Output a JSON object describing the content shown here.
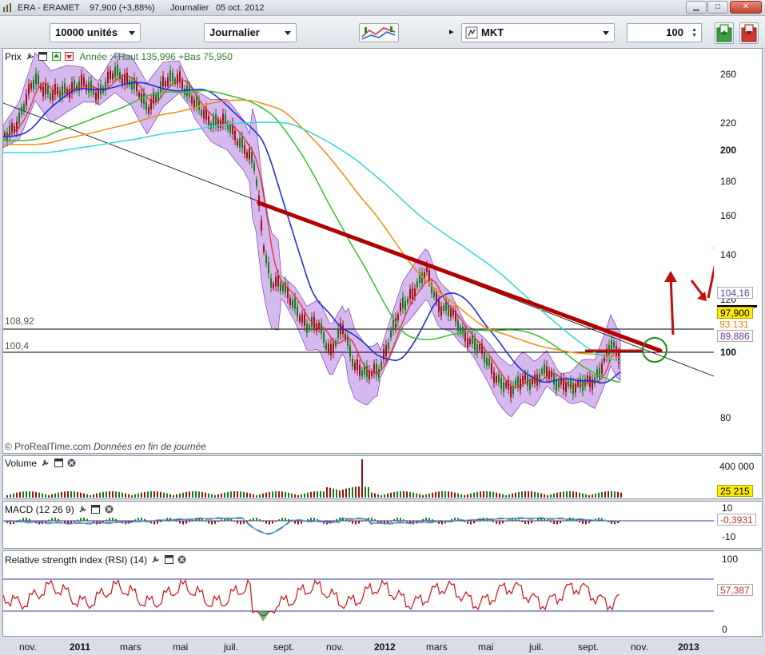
{
  "window": {
    "symbol": "ERA - ERAMET",
    "price": "97,900 (+3,88%)",
    "period": "Journalier",
    "date": "05 oct. 2012"
  },
  "toolbar": {
    "units": "10000 unités",
    "timeframe": "Journalier",
    "market": "MKT",
    "count": "100"
  },
  "price_panel": {
    "label": "Prix",
    "annotation": "Année :+Haut 135,996 +Bas 75,950",
    "copyright": "© ProRealTime.com",
    "copyright_note": "Données en fin de journée",
    "level_high": "108,92",
    "level_low": "100,4",
    "axis_ticks": [
      "260",
      "220",
      "200",
      "180",
      "160",
      "140",
      "120",
      "100",
      "80"
    ],
    "tags": [
      "104,16",
      "97,900",
      "93,131",
      "89,886"
    ],
    "accent_colors": {
      "bollinger": "#c8a2e8",
      "ma_short": "#e03030",
      "ma_20": "#2030d0",
      "ma_50": "#30c030",
      "ma_100": "#f08c10",
      "ma_200": "#30d8d8",
      "trendline": "#b00000"
    }
  },
  "volume_panel": {
    "label": "Volume",
    "axis_ticks": [
      "400 000"
    ],
    "tag": "25 215"
  },
  "macd_panel": {
    "label": "MACD (12 26 9)",
    "axis_ticks": [
      "10",
      "-10"
    ],
    "tag": "-0,3931"
  },
  "rsi_panel": {
    "label": "Relative strength index (RSI) (14)",
    "axis_ticks": [
      "100",
      "0"
    ],
    "tag": "57,387"
  },
  "x_axis": [
    "nov.",
    "2011",
    "mars",
    "mai",
    "juil.",
    "sept.",
    "nov.",
    "2012",
    "mars",
    "mai",
    "juil.",
    "sept.",
    "nov.",
    "2013"
  ]
}
